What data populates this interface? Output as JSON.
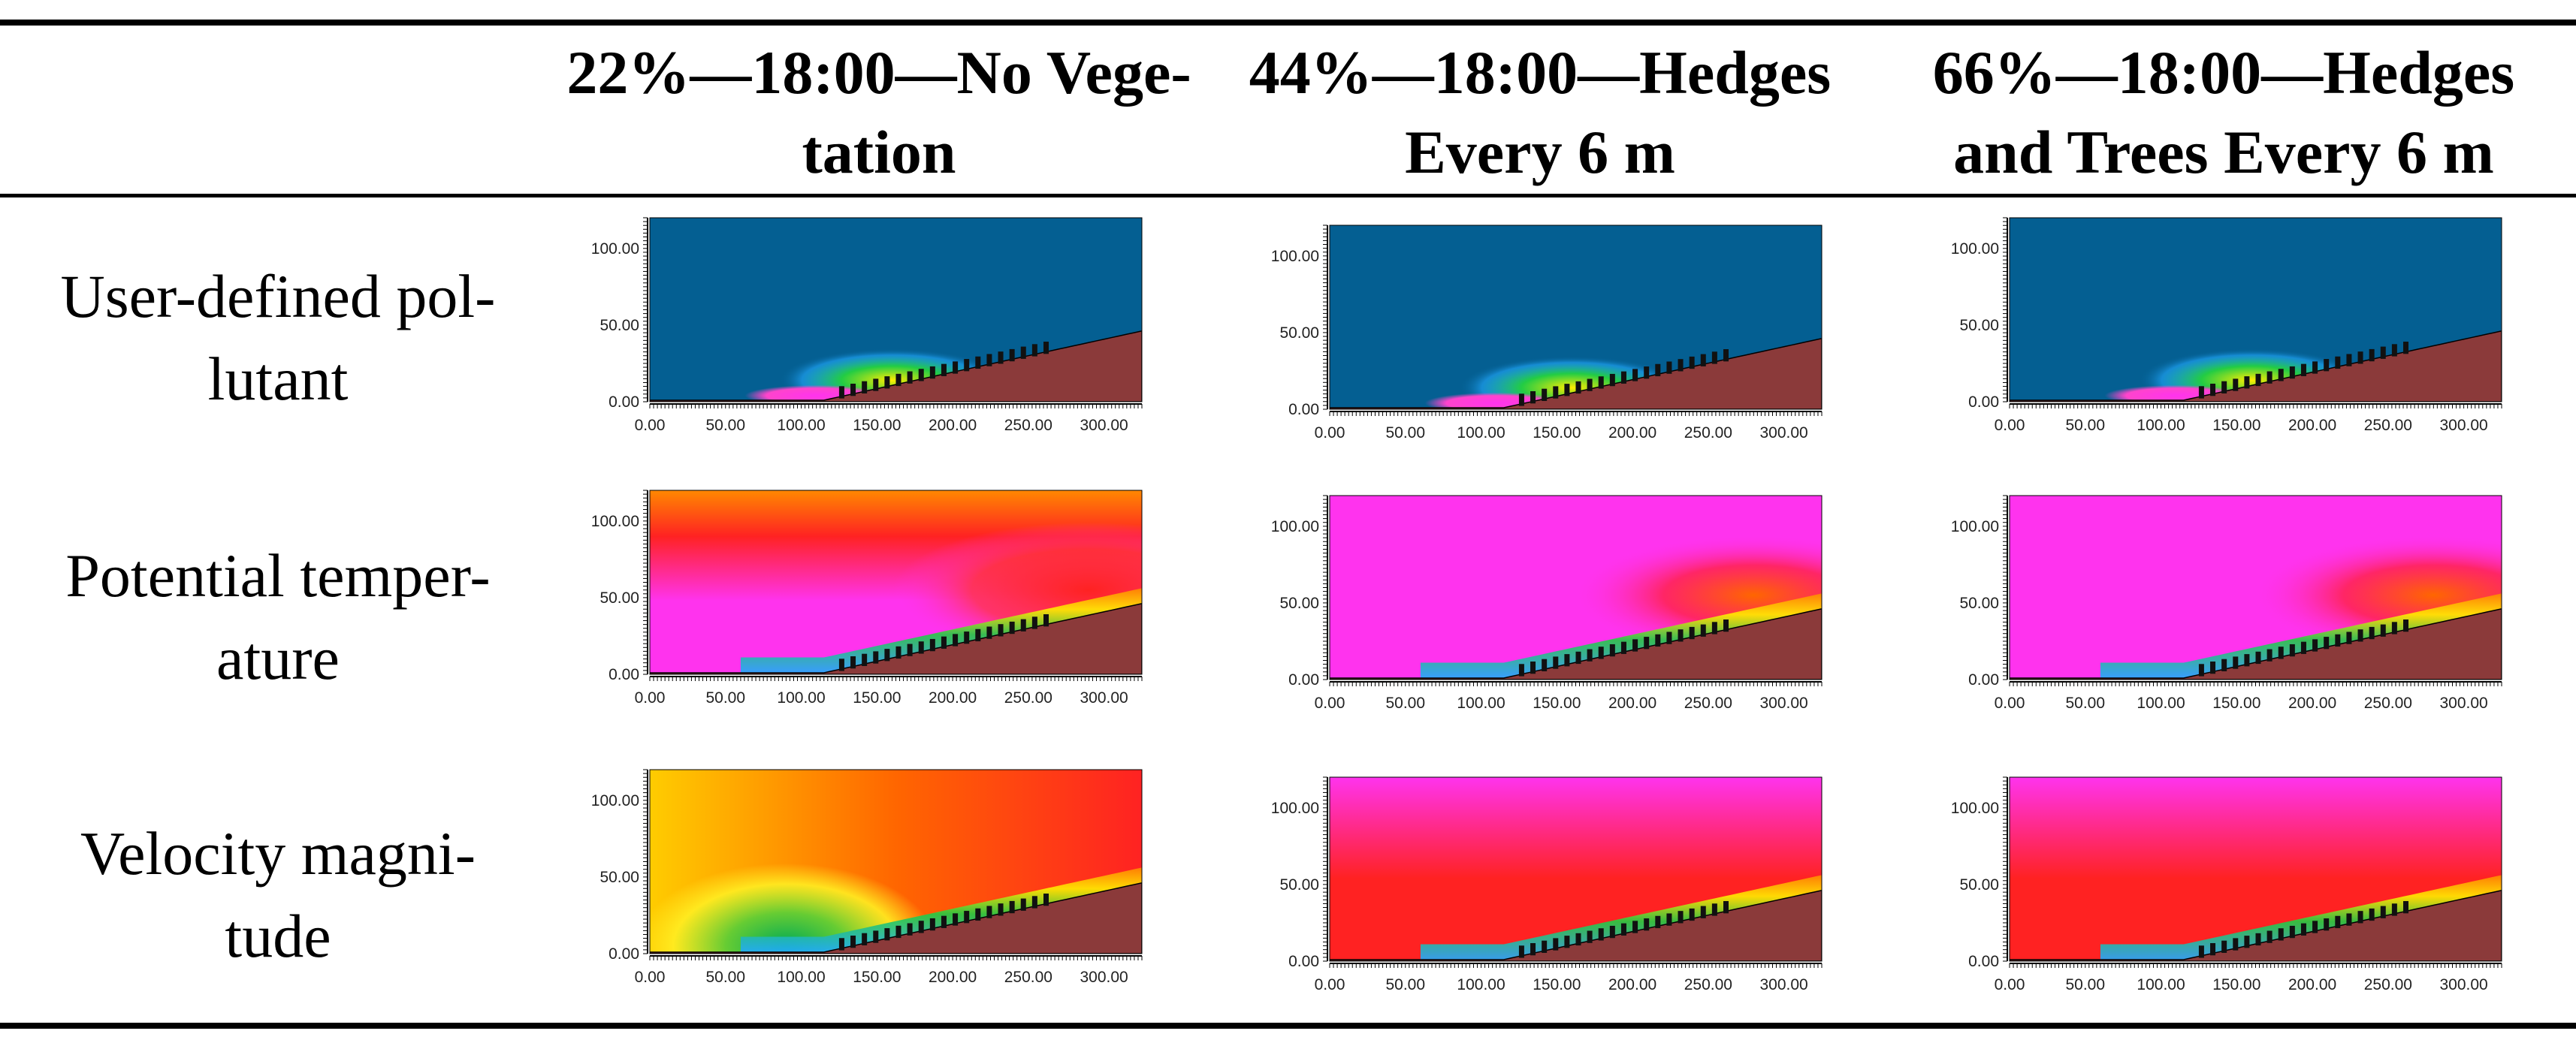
{
  "columns": [
    {
      "line1": "22%—18:00—No Vege-",
      "line2": "tation"
    },
    {
      "line1": "44%—18:00—Hedges",
      "line2": "Every 6 m"
    },
    {
      "line1": "66%—18:00—Hedges",
      "line2": "and Trees Every 6 m"
    }
  ],
  "rows": [
    {
      "line1": "User-defined pol-",
      "line2": "lutant"
    },
    {
      "line1": "Potential temper-",
      "line2": "ature"
    },
    {
      "line1": "Velocity magni-",
      "line2": "tude"
    }
  ],
  "axes": {
    "x_ticks": [
      "0.00",
      "50.00",
      "100.00",
      "150.00",
      "200.00",
      "250.00",
      "300.00"
    ],
    "y_ticks": [
      "0.00",
      "50.00",
      "100.00"
    ],
    "x_range": [
      0,
      325
    ],
    "y_range": [
      0,
      120
    ]
  },
  "colors": {
    "ground": "#8b3a3a",
    "pollutant_background": "#045f92",
    "temperature_background": "#ff33ee",
    "velocity_background": "#ff2222",
    "building": "#111111"
  }
}
